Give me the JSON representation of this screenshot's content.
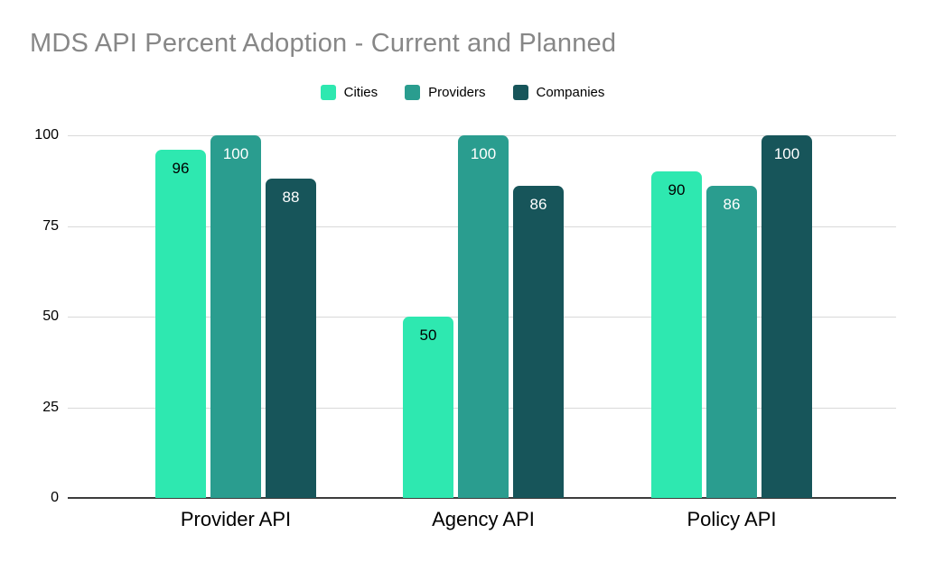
{
  "chart_data": {
    "type": "bar",
    "title": "MDS API Percent Adoption - Current and Planned",
    "categories": [
      "Provider API",
      "Agency API",
      "Policy API"
    ],
    "series": [
      {
        "name": "Cities",
        "color": "#2ee8b0",
        "label_color": "#000000",
        "values": [
          96,
          50,
          90
        ]
      },
      {
        "name": "Providers",
        "color": "#2a9d8f",
        "label_color": "#ffffff",
        "values": [
          100,
          100,
          86
        ]
      },
      {
        "name": "Companies",
        "color": "#17555a",
        "label_color": "#ffffff",
        "values": [
          88,
          86,
          100
        ]
      }
    ],
    "ylim": [
      0,
      100
    ],
    "yticks": [
      0,
      25,
      50,
      75,
      100
    ],
    "grid": true,
    "legend_position": "top",
    "value_labels": true,
    "colors": {
      "title_text": "#878787",
      "gridline": "#d9d9d9",
      "axis_line": "#3c3c3c",
      "tick_text": "#000000",
      "background": "#ffffff"
    }
  }
}
